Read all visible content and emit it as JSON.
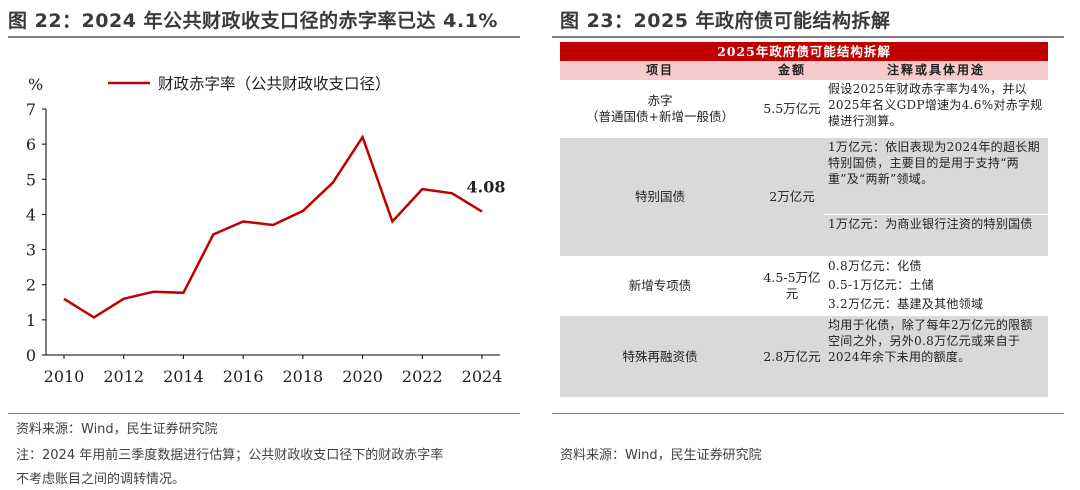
{
  "left_panel": {
    "title": "图 22：2024 年公共财政收支口径的赤字率已达 4.1%",
    "source": "资料来源：Wind，民生证券研究院",
    "note_line1": "注：2024 年用前三季度数据进行估算；公共财政收支口径下的财政赤字率",
    "note_line2": "不考虑账目之间的调转情况。"
  },
  "chart_data": {
    "type": "line",
    "unit_label": "%",
    "x": [
      2010,
      2011,
      2012,
      2013,
      2014,
      2015,
      2016,
      2017,
      2018,
      2019,
      2020,
      2021,
      2022,
      2023,
      2024
    ],
    "x_ticks": [
      2010,
      2012,
      2014,
      2016,
      2018,
      2020,
      2022,
      2024
    ],
    "series": [
      {
        "name": "财政赤字率（公共财政收支口径）",
        "color": "#c00000",
        "values": [
          1.6,
          1.07,
          1.6,
          1.8,
          1.77,
          3.43,
          3.8,
          3.7,
          4.1,
          4.9,
          6.2,
          3.8,
          4.72,
          4.6,
          4.08
        ]
      }
    ],
    "end_label": "4.08",
    "ylim": [
      0,
      7
    ],
    "y_ticks": [
      0,
      1,
      2,
      3,
      4,
      5,
      6,
      7
    ],
    "legend_position": "top",
    "grid": false
  },
  "right_panel": {
    "title": "图 23：2025 年政府债可能结构拆解",
    "source": "资料来源：Wind，民生证券研究院",
    "table_title": "2025年政府债可能结构拆解",
    "headers": [
      "项目",
      "金额",
      "注释或具体用途"
    ],
    "rows": [
      {
        "item_line1": "赤字",
        "item_line2": "（普通国债+新增一般债）",
        "amount": "5.5万亿元",
        "notes": [
          "假设2025年财政赤字率为4%，并以2025年名义GDP增速为4.6%对赤字规模进行测算。"
        ]
      },
      {
        "item_line1": "特别国债",
        "item_line2": "",
        "amount": "2万亿元",
        "notes": [
          "1万亿元：依旧表现为2024年的超长期特别国债，主要目的是用于支持“两重”及“两新”领域。",
          "1万亿元：为商业银行注资的特别国债"
        ]
      },
      {
        "item_line1": "新增专项债",
        "item_line2": "",
        "amount": "4.5-5万亿元",
        "notes": [
          "0.8万亿元：化债",
          "0.5-1万亿元：土储",
          "3.2万亿元：基建及其他领域"
        ]
      },
      {
        "item_line1": "特殊再融资债",
        "item_line2": "",
        "amount": "2.8万亿元",
        "notes": [
          "均用于化债，除了每年2万亿元的限额空间之外，另外0.8万亿元或来自于2024年余下未用的额度。"
        ]
      }
    ]
  }
}
